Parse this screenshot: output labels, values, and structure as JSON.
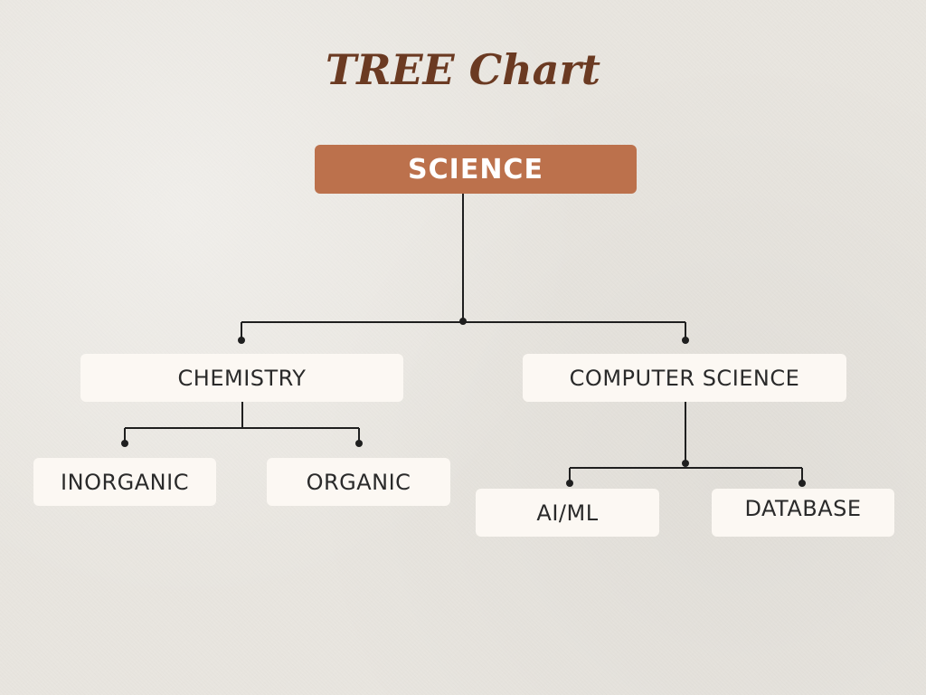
{
  "title": "TREE Chart",
  "colors": {
    "title": "#6b3a22",
    "root": "#bc714c",
    "node": "#fcf8f3",
    "line": "#1f1f1f"
  },
  "tree": {
    "root": "SCIENCE",
    "branches": [
      {
        "label": "CHEMISTRY",
        "children": [
          "INORGANIC",
          "ORGANIC"
        ]
      },
      {
        "label": "COMPUTER SCIENCE",
        "children": [
          "AI/ML",
          "DATABASE"
        ]
      }
    ]
  }
}
